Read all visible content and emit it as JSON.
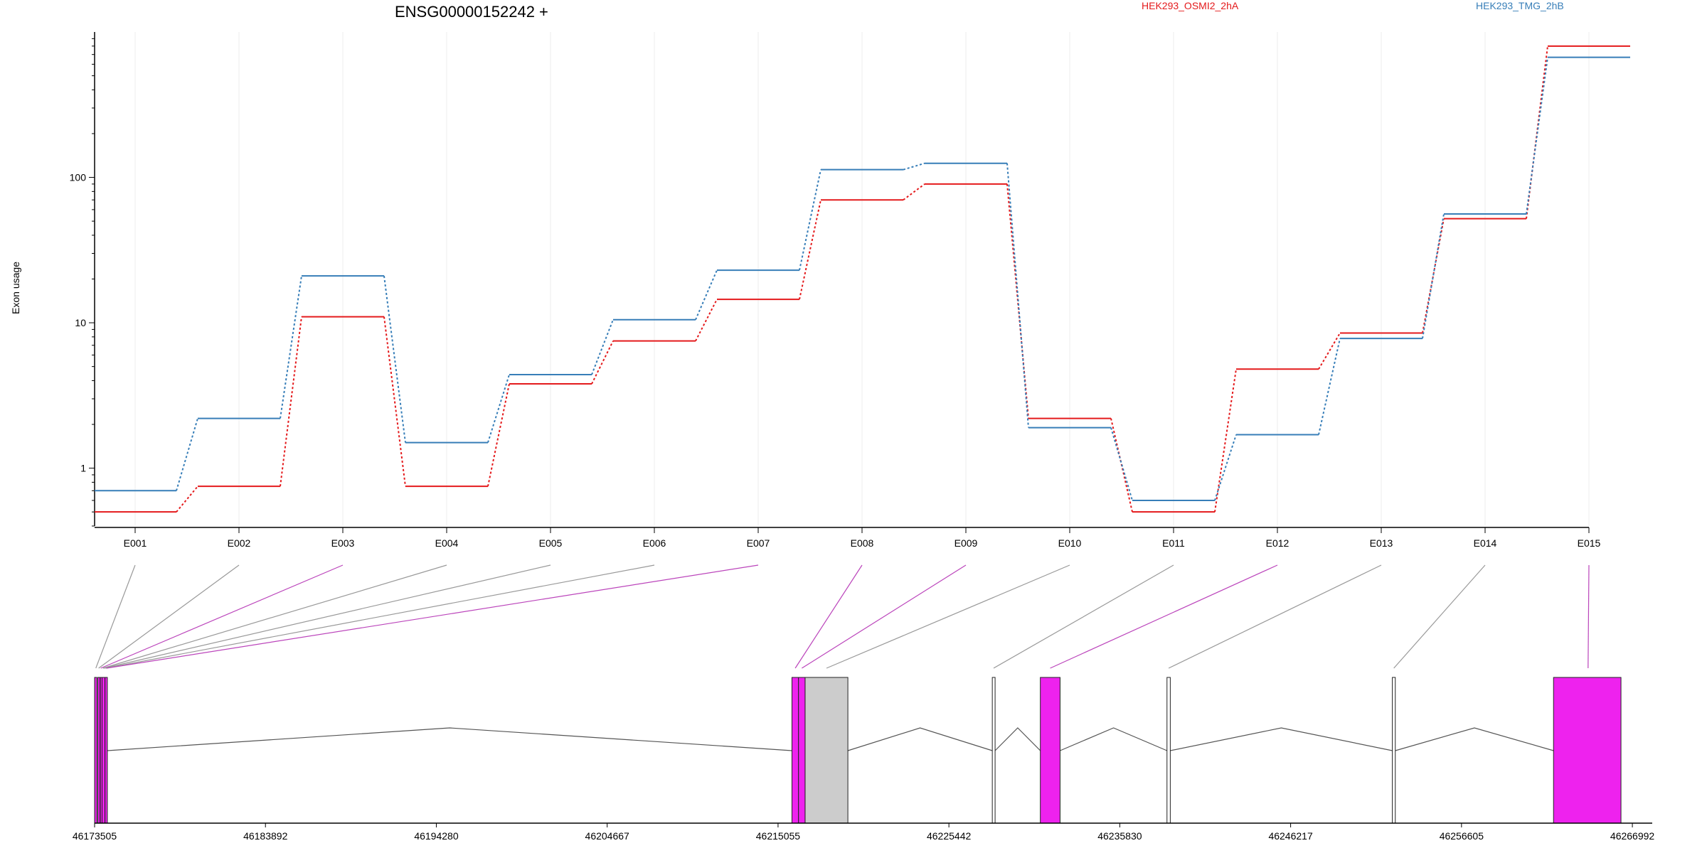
{
  "chart_data": {
    "type": "line",
    "title": "ENSG00000152242 +",
    "ylabel": "Exon usage",
    "yscale": "log",
    "ylim": [
      0.4,
      1000
    ],
    "yticks": [
      1,
      10,
      100
    ],
    "grid": "vertical",
    "legend_position": "top-right",
    "categories": [
      "E001",
      "E002",
      "E003",
      "E004",
      "E005",
      "E006",
      "E007",
      "E008",
      "E009",
      "E010",
      "E011",
      "E012",
      "E013",
      "E014",
      "E015"
    ],
    "series": [
      {
        "name": "HEK293_OSMI2_2hA",
        "color": "#e41a1c",
        "values": [
          0.5,
          0.75,
          11,
          0.75,
          3.8,
          7.5,
          14.5,
          70,
          90,
          2.2,
          0.5,
          4.8,
          8.5,
          52,
          800
        ]
      },
      {
        "name": "HEK293_TMG_2hB",
        "color": "#377eb8",
        "values": [
          0.7,
          2.2,
          21,
          1.5,
          4.4,
          10.5,
          23,
          113,
          125,
          1.9,
          0.6,
          1.7,
          7.8,
          56,
          670
        ]
      }
    ],
    "gene_model": {
      "coord_ticks": [
        46173505,
        46183892,
        46194280,
        46204667,
        46215055,
        46225442,
        46235830,
        46246217,
        46256605,
        46266992
      ],
      "range": [
        46173505,
        46268200
      ],
      "exons": [
        {
          "start": 46173505,
          "end": 46173640,
          "color": "#ee22ee"
        },
        {
          "start": 46173700,
          "end": 46173800,
          "color": "#ee22ee"
        },
        {
          "start": 46173850,
          "end": 46173920,
          "color": "#ee22ee"
        },
        {
          "start": 46173960,
          "end": 46174130,
          "color": "#ee22ee"
        },
        {
          "start": 46174140,
          "end": 46174280,
          "color": "#ee22ee"
        },
        {
          "start": 46215900,
          "end": 46216300,
          "color": "#ee22ee"
        },
        {
          "start": 46216300,
          "end": 46216700,
          "color": "#ee22ee"
        },
        {
          "start": 46216700,
          "end": 46219300,
          "color": "#cccccc"
        },
        {
          "start": 46228080,
          "end": 46228250,
          "color": "#ffffff"
        },
        {
          "start": 46231000,
          "end": 46232200,
          "color": "#ee22ee"
        },
        {
          "start": 46238700,
          "end": 46238900,
          "color": "#ffffff"
        },
        {
          "start": 46252400,
          "end": 46252580,
          "color": "#ffffff"
        },
        {
          "start": 46262200,
          "end": 46266300,
          "color": "#ee22ee"
        }
      ],
      "exon_links": [
        {
          "bin": "E001",
          "pos": 46173580,
          "color": "#999999"
        },
        {
          "bin": "E002",
          "pos": 46173750,
          "color": "#999999"
        },
        {
          "bin": "E003",
          "pos": 46173880,
          "color": "#bb44bb"
        },
        {
          "bin": "E004",
          "pos": 46174010,
          "color": "#999999"
        },
        {
          "bin": "E005",
          "pos": 46174080,
          "color": "#999999"
        },
        {
          "bin": "E006",
          "pos": 46174180,
          "color": "#999999"
        },
        {
          "bin": "E007",
          "pos": 46174230,
          "color": "#bb44bb"
        },
        {
          "bin": "E008",
          "pos": 46216100,
          "color": "#bb44bb"
        },
        {
          "bin": "E009",
          "pos": 46216500,
          "color": "#bb44bb"
        },
        {
          "bin": "E010",
          "pos": 46218000,
          "color": "#999999"
        },
        {
          "bin": "E011",
          "pos": 46228160,
          "color": "#999999"
        },
        {
          "bin": "E012",
          "pos": 46231600,
          "color": "#bb44bb"
        },
        {
          "bin": "E013",
          "pos": 46238800,
          "color": "#999999"
        },
        {
          "bin": "E014",
          "pos": 46252490,
          "color": "#999999"
        },
        {
          "bin": "E015",
          "pos": 46264300,
          "color": "#bb44bb"
        }
      ]
    }
  }
}
